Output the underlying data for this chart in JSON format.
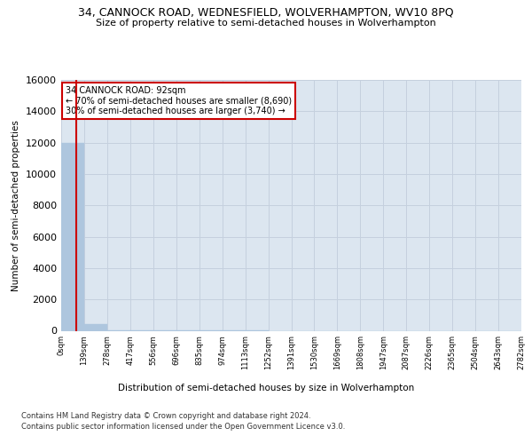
{
  "title": "34, CANNOCK ROAD, WEDNESFIELD, WOLVERHAMPTON, WV10 8PQ",
  "subtitle": "Size of property relative to semi-detached houses in Wolverhampton",
  "xlabel_dist": "Distribution of semi-detached houses by size in Wolverhampton",
  "ylabel": "Number of semi-detached properties",
  "footnote1": "Contains HM Land Registry data © Crown copyright and database right 2024.",
  "footnote2": "Contains public sector information licensed under the Open Government Licence v3.0.",
  "bar_edges": [
    0,
    139,
    278,
    417,
    556,
    696,
    835,
    974,
    1113,
    1252,
    1391,
    1530,
    1669,
    1808,
    1947,
    2087,
    2226,
    2365,
    2504,
    2643,
    2782
  ],
  "bar_heights": [
    12000,
    400,
    10,
    5,
    3,
    2,
    1,
    1,
    1,
    0,
    0,
    0,
    0,
    0,
    0,
    0,
    0,
    0,
    0,
    0
  ],
  "bar_color": "#aec6de",
  "grid_color": "#c5d0de",
  "bg_color": "#dce6f0",
  "subject_value": 92,
  "subject_line_color": "#cc0000",
  "annotation_box_color": "#cc0000",
  "annotation_text": "34 CANNOCK ROAD: 92sqm",
  "annotation_line1": "← 70% of semi-detached houses are smaller (8,690)",
  "annotation_line2": "30% of semi-detached houses are larger (3,740) →",
  "ylim": [
    0,
    16000
  ],
  "yticks": [
    0,
    2000,
    4000,
    6000,
    8000,
    10000,
    12000,
    14000,
    16000
  ],
  "tick_labels": [
    "0sqm",
    "139sqm",
    "278sqm",
    "417sqm",
    "556sqm",
    "696sqm",
    "835sqm",
    "974sqm",
    "1113sqm",
    "1252sqm",
    "1391sqm",
    "1530sqm",
    "1669sqm",
    "1808sqm",
    "1947sqm",
    "2087sqm",
    "2226sqm",
    "2365sqm",
    "2504sqm",
    "2643sqm",
    "2782sqm"
  ]
}
